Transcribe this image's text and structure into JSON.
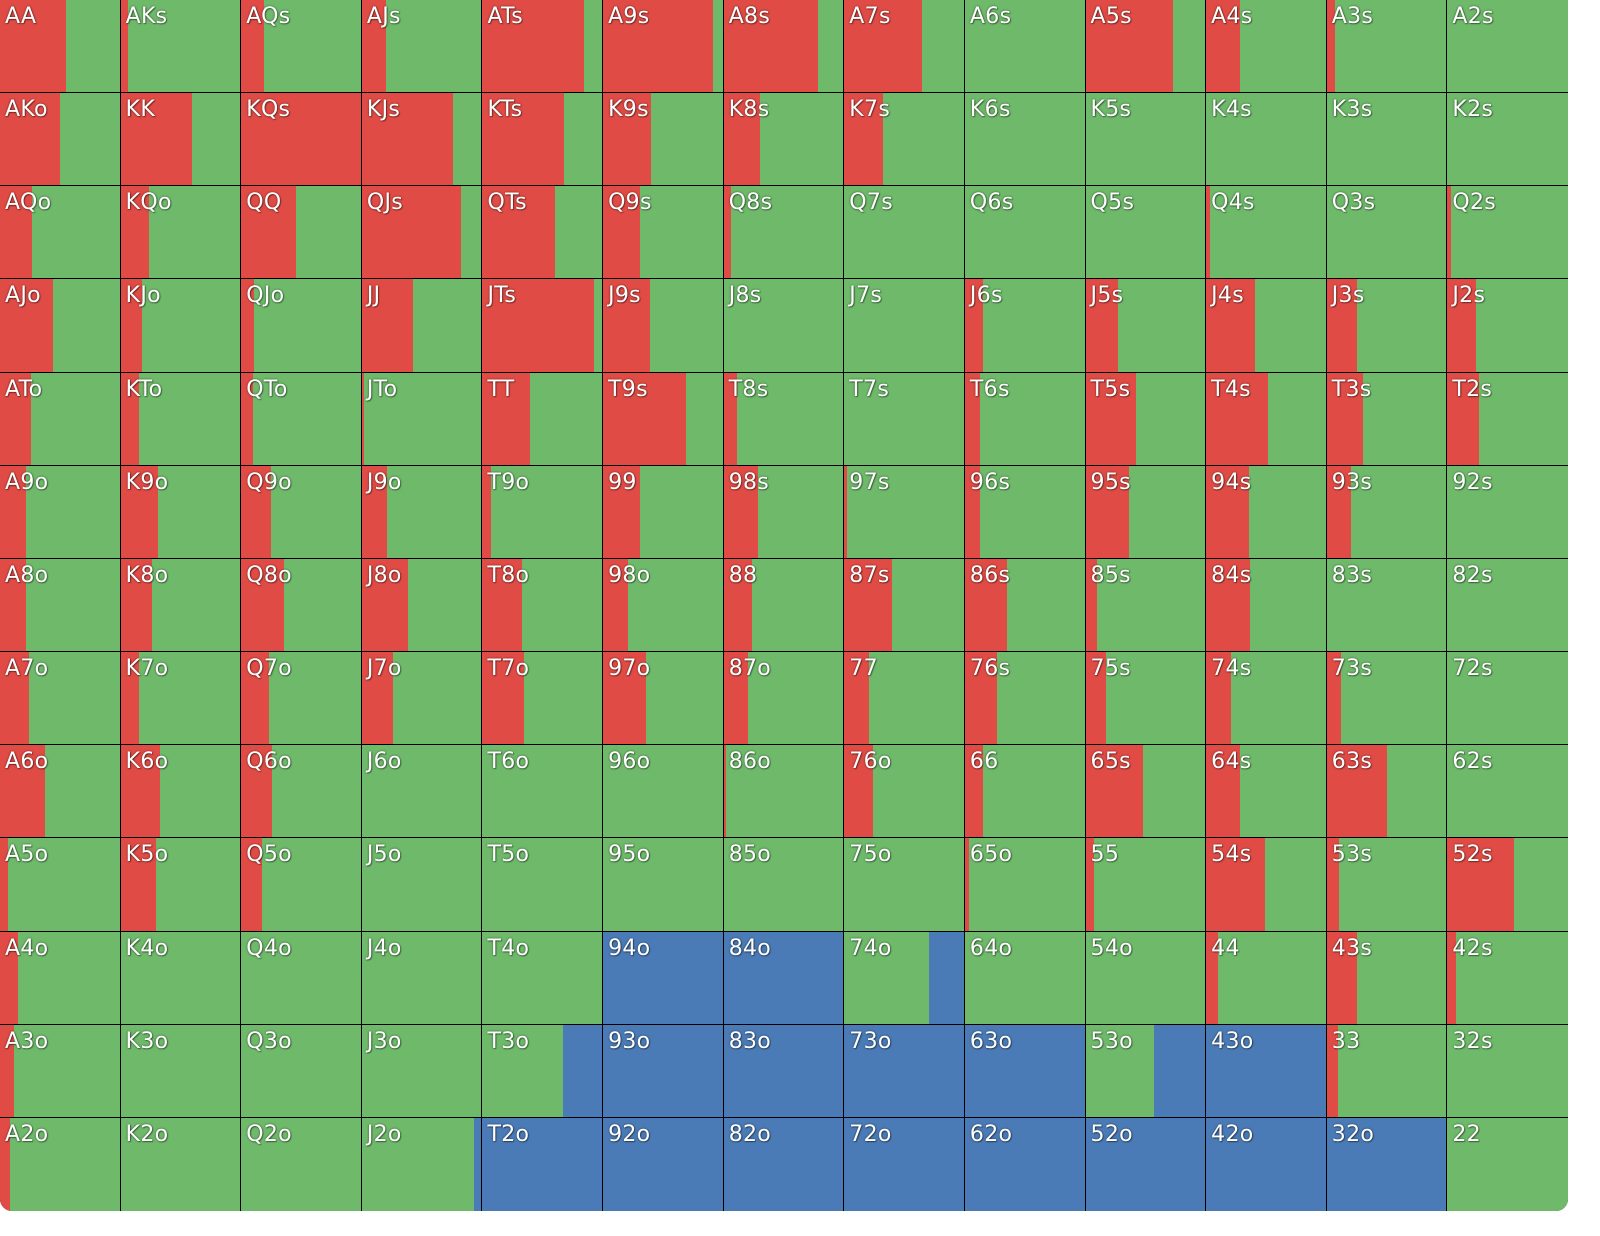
{
  "colors": {
    "raise": "#e04b45",
    "call": "#6eb96a",
    "fold": "#4a7bb6"
  },
  "hands": [
    [
      "AA",
      "AKs",
      "AQs",
      "AJs",
      "ATs",
      "A9s",
      "A8s",
      "A7s",
      "A6s",
      "A5s",
      "A4s",
      "A3s",
      "A2s"
    ],
    [
      "AKo",
      "KK",
      "KQs",
      "KJs",
      "KTs",
      "K9s",
      "K8s",
      "K7s",
      "K6s",
      "K5s",
      "K4s",
      "K3s",
      "K2s"
    ],
    [
      "AQo",
      "KQo",
      "QQ",
      "QJs",
      "QTs",
      "Q9s",
      "Q8s",
      "Q7s",
      "Q6s",
      "Q5s",
      "Q4s",
      "Q3s",
      "Q2s"
    ],
    [
      "AJo",
      "KJo",
      "QJo",
      "JJ",
      "JTs",
      "J9s",
      "J8s",
      "J7s",
      "J6s",
      "J5s",
      "J4s",
      "J3s",
      "J2s"
    ],
    [
      "ATo",
      "KTo",
      "QTo",
      "JTo",
      "TT",
      "T9s",
      "T8s",
      "T7s",
      "T6s",
      "T5s",
      "T4s",
      "T3s",
      "T2s"
    ],
    [
      "A9o",
      "K9o",
      "Q9o",
      "J9o",
      "T9o",
      "99",
      "98s",
      "97s",
      "96s",
      "95s",
      "94s",
      "93s",
      "92s"
    ],
    [
      "A8o",
      "K8o",
      "Q8o",
      "J8o",
      "T8o",
      "98o",
      "88",
      "87s",
      "86s",
      "85s",
      "84s",
      "83s",
      "82s"
    ],
    [
      "A7o",
      "K7o",
      "Q7o",
      "J7o",
      "T7o",
      "97o",
      "87o",
      "77",
      "76s",
      "75s",
      "74s",
      "73s",
      "72s"
    ],
    [
      "A6o",
      "K6o",
      "Q6o",
      "J6o",
      "T6o",
      "96o",
      "86o",
      "76o",
      "66",
      "65s",
      "64s",
      "63s",
      "62s"
    ],
    [
      "A5o",
      "K5o",
      "Q5o",
      "J5o",
      "T5o",
      "95o",
      "85o",
      "75o",
      "65o",
      "55",
      "54s",
      "53s",
      "52s"
    ],
    [
      "A4o",
      "K4o",
      "Q4o",
      "J4o",
      "T4o",
      "94o",
      "84o",
      "74o",
      "64o",
      "54o",
      "44",
      "43s",
      "42s"
    ],
    [
      "A3o",
      "K3o",
      "Q3o",
      "J3o",
      "T3o",
      "93o",
      "83o",
      "73o",
      "63o",
      "53o",
      "43o",
      "33",
      "32s"
    ],
    [
      "A2o",
      "K2o",
      "Q2o",
      "J2o",
      "T2o",
      "92o",
      "82o",
      "72o",
      "62o",
      "52o",
      "42o",
      "32o",
      "22"
    ]
  ],
  "frequencies": [
    [
      [
        0.55,
        0.45,
        0
      ],
      [
        0.06,
        0.94,
        0
      ],
      [
        0.19,
        0.81,
        0
      ],
      [
        0.2,
        0.8,
        0
      ],
      [
        0.85,
        0.15,
        0
      ],
      [
        0.92,
        0.08,
        0
      ],
      [
        0.79,
        0.21,
        0
      ],
      [
        0.65,
        0.35,
        0
      ],
      [
        0,
        1,
        0
      ],
      [
        0.73,
        0.27,
        0
      ],
      [
        0.28,
        0.72,
        0
      ],
      [
        0.07,
        0.93,
        0
      ],
      [
        0,
        1,
        0
      ]
    ],
    [
      [
        0.5,
        0.5,
        0
      ],
      [
        0.6,
        0.4,
        0
      ],
      [
        1.0,
        0,
        0
      ],
      [
        0.76,
        0.24,
        0
      ],
      [
        0.68,
        0.32,
        0
      ],
      [
        0.4,
        0.6,
        0
      ],
      [
        0.3,
        0.7,
        0
      ],
      [
        0.32,
        0.68,
        0
      ],
      [
        0,
        1,
        0
      ],
      [
        0,
        1,
        0
      ],
      [
        0,
        1,
        0
      ],
      [
        0,
        1,
        0
      ],
      [
        0,
        1,
        0
      ]
    ],
    [
      [
        0.27,
        0.73,
        0
      ],
      [
        0.24,
        0.76,
        0
      ],
      [
        0.46,
        0.54,
        0
      ],
      [
        0.83,
        0.17,
        0
      ],
      [
        0.61,
        0.39,
        0
      ],
      [
        0.31,
        0.69,
        0
      ],
      [
        0.06,
        0.94,
        0
      ],
      [
        0,
        1,
        0
      ],
      [
        0,
        1,
        0
      ],
      [
        0,
        1,
        0
      ],
      [
        0.03,
        0.97,
        0
      ],
      [
        0,
        1,
        0
      ],
      [
        0.03,
        0.97,
        0
      ]
    ],
    [
      [
        0.44,
        0.56,
        0
      ],
      [
        0.18,
        0.82,
        0
      ],
      [
        0.11,
        0.89,
        0
      ],
      [
        0.43,
        0.57,
        0
      ],
      [
        0.93,
        0.07,
        0
      ],
      [
        0.39,
        0.61,
        0
      ],
      [
        0,
        1,
        0
      ],
      [
        0,
        1,
        0
      ],
      [
        0.15,
        0.85,
        0
      ],
      [
        0.27,
        0.73,
        0
      ],
      [
        0.41,
        0.59,
        0
      ],
      [
        0.25,
        0.75,
        0
      ],
      [
        0.24,
        0.76,
        0
      ]
    ],
    [
      [
        0.26,
        0.74,
        0
      ],
      [
        0.15,
        0.85,
        0
      ],
      [
        0.1,
        0.9,
        0
      ],
      [
        0.02,
        0.98,
        0
      ],
      [
        0.4,
        0.6,
        0
      ],
      [
        0.69,
        0.31,
        0
      ],
      [
        0.11,
        0.89,
        0
      ],
      [
        0,
        1,
        0
      ],
      [
        0.13,
        0.87,
        0
      ],
      [
        0.42,
        0.58,
        0
      ],
      [
        0.52,
        0.48,
        0
      ],
      [
        0.3,
        0.7,
        0
      ],
      [
        0.26,
        0.74,
        0
      ]
    ],
    [
      [
        0.22,
        0.78,
        0
      ],
      [
        0.31,
        0.69,
        0
      ],
      [
        0.25,
        0.75,
        0
      ],
      [
        0.21,
        0.79,
        0
      ],
      [
        0.07,
        0.93,
        0
      ],
      [
        0.31,
        0.69,
        0
      ],
      [
        0.29,
        0.71,
        0
      ],
      [
        0.02,
        0.98,
        0
      ],
      [
        0.13,
        0.87,
        0
      ],
      [
        0.36,
        0.64,
        0
      ],
      [
        0.36,
        0.64,
        0
      ],
      [
        0.2,
        0.8,
        0
      ],
      [
        0,
        1,
        0
      ]
    ],
    [
      [
        0.22,
        0.78,
        0
      ],
      [
        0.26,
        0.74,
        0
      ],
      [
        0.36,
        0.64,
        0
      ],
      [
        0.39,
        0.61,
        0
      ],
      [
        0.33,
        0.67,
        0
      ],
      [
        0.21,
        0.79,
        0
      ],
      [
        0.24,
        0.76,
        0
      ],
      [
        0.4,
        0.6,
        0
      ],
      [
        0.35,
        0.65,
        0
      ],
      [
        0.1,
        0.9,
        0
      ],
      [
        0.37,
        0.63,
        0
      ],
      [
        0,
        1,
        0
      ],
      [
        0,
        1,
        0
      ]
    ],
    [
      [
        0.24,
        0.76,
        0
      ],
      [
        0.15,
        0.85,
        0
      ],
      [
        0.23,
        0.77,
        0
      ],
      [
        0.26,
        0.74,
        0
      ],
      [
        0.35,
        0.65,
        0
      ],
      [
        0.36,
        0.64,
        0
      ],
      [
        0.2,
        0.8,
        0
      ],
      [
        0.21,
        0.79,
        0
      ],
      [
        0.27,
        0.73,
        0
      ],
      [
        0.17,
        0.83,
        0
      ],
      [
        0.21,
        0.79,
        0
      ],
      [
        0.12,
        0.88,
        0
      ],
      [
        0,
        1,
        0
      ]
    ],
    [
      [
        0.38,
        0.62,
        0
      ],
      [
        0.33,
        0.67,
        0
      ],
      [
        0.26,
        0.74,
        0
      ],
      [
        0,
        1,
        0
      ],
      [
        0,
        1,
        0
      ],
      [
        0,
        1,
        0
      ],
      [
        0.02,
        0.98,
        0
      ],
      [
        0.24,
        0.76,
        0
      ],
      [
        0.15,
        0.85,
        0
      ],
      [
        0.48,
        0.52,
        0
      ],
      [
        0.28,
        0.72,
        0
      ],
      [
        0.5,
        0.5,
        0
      ],
      [
        0,
        1,
        0
      ]
    ],
    [
      [
        0.07,
        0.93,
        0
      ],
      [
        0.3,
        0.7,
        0
      ],
      [
        0.17,
        0.83,
        0
      ],
      [
        0,
        1,
        0
      ],
      [
        0,
        1,
        0
      ],
      [
        0,
        1,
        0
      ],
      [
        0,
        1,
        0
      ],
      [
        0,
        1,
        0
      ],
      [
        0.03,
        0.97,
        0
      ],
      [
        0.07,
        0.93,
        0
      ],
      [
        0.49,
        0.51,
        0
      ],
      [
        0.1,
        0.9,
        0
      ],
      [
        0.55,
        0.45,
        0
      ]
    ],
    [
      [
        0.15,
        0.85,
        0
      ],
      [
        0,
        1,
        0
      ],
      [
        0,
        1,
        0
      ],
      [
        0,
        1,
        0
      ],
      [
        0,
        1,
        0
      ],
      [
        0,
        0,
        1
      ],
      [
        0,
        0,
        1
      ],
      [
        0,
        0.71,
        0.29
      ],
      [
        0,
        1,
        0
      ],
      [
        0,
        1,
        0
      ],
      [
        0.1,
        0.9,
        0
      ],
      [
        0.25,
        0.75,
        0
      ],
      [
        0.07,
        0.93,
        0
      ]
    ],
    [
      [
        0.12,
        0.88,
        0
      ],
      [
        0,
        1,
        0
      ],
      [
        0,
        1,
        0
      ],
      [
        0,
        1,
        0
      ],
      [
        0,
        0.67,
        0.33
      ],
      [
        0,
        0,
        1
      ],
      [
        0,
        0,
        1
      ],
      [
        0,
        0,
        1
      ],
      [
        0,
        0,
        1
      ],
      [
        0,
        0.57,
        0.43
      ],
      [
        0,
        0,
        1
      ],
      [
        0.09,
        0.91,
        0
      ],
      [
        0,
        1,
        0
      ]
    ],
    [
      [
        0.08,
        0.92,
        0
      ],
      [
        0,
        1,
        0
      ],
      [
        0,
        1,
        0
      ],
      [
        0,
        0.94,
        0.06
      ],
      [
        0,
        0,
        1
      ],
      [
        0,
        0,
        1
      ],
      [
        0,
        0,
        1
      ],
      [
        0,
        0,
        1
      ],
      [
        0,
        0,
        1
      ],
      [
        0,
        0,
        1
      ],
      [
        0,
        0,
        1
      ],
      [
        0,
        0,
        1
      ],
      [
        0,
        1,
        0
      ]
    ]
  ]
}
